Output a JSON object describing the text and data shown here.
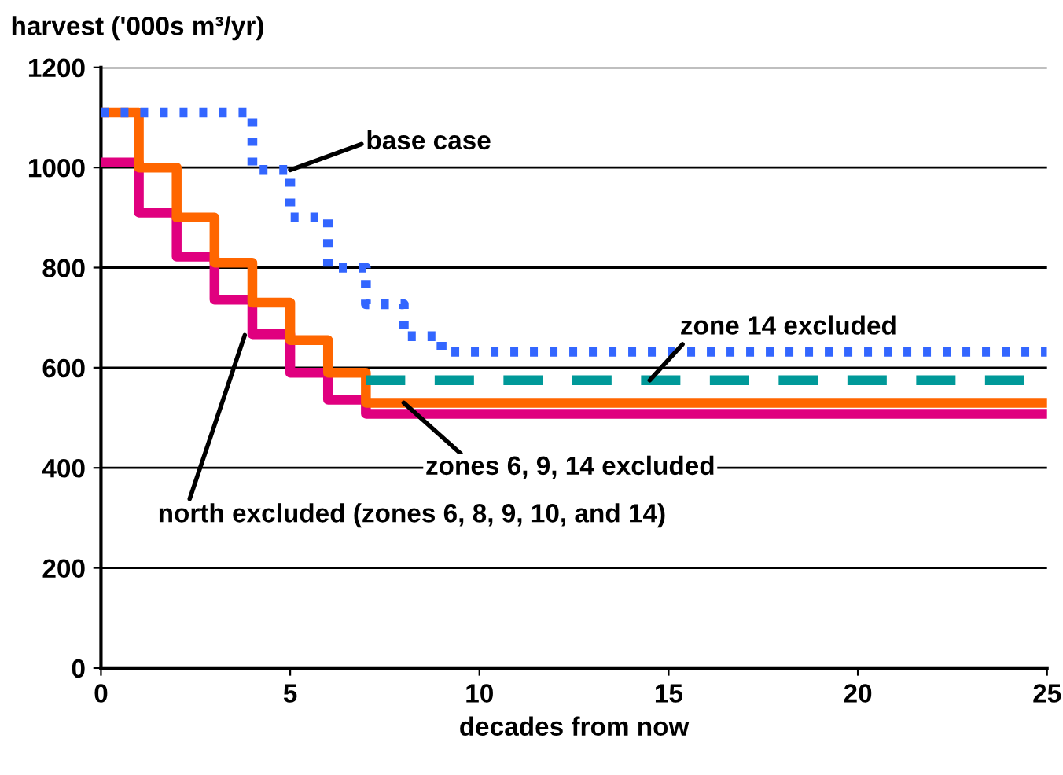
{
  "chart_data": {
    "type": "step",
    "ylabel": "harvest ('000s m³/yr)",
    "xlabel": "decades from now",
    "xlim": [
      0,
      25
    ],
    "ylim": [
      0,
      1200
    ],
    "xticks": [
      0,
      5,
      10,
      15,
      20,
      25
    ],
    "yticks": [
      0,
      200,
      400,
      600,
      800,
      1000,
      1200
    ],
    "grid": "y",
    "legend": false,
    "series": [
      {
        "color": "#e0007f",
        "line_style": "solid",
        "x": [
          0,
          1,
          2,
          3,
          4,
          5,
          6,
          7,
          25
        ],
        "values": [
          1010,
          910,
          822,
          736,
          667,
          590,
          536,
          508,
          508
        ]
      },
      {
        "color": "#ff6600",
        "line_style": "solid",
        "x": [
          0,
          1,
          2,
          3,
          4,
          5,
          6,
          7,
          25
        ],
        "values": [
          1110,
          1000,
          900,
          810,
          730,
          655,
          590,
          530,
          530
        ]
      },
      {
        "color": "#009999",
        "line_style": "dashed",
        "x": [
          7,
          25
        ],
        "values": [
          575,
          575
        ]
      },
      {
        "color": "#3366ff",
        "line_style": "dotted",
        "x": [
          0,
          4,
          5,
          6,
          7,
          8,
          9,
          25
        ],
        "values": [
          1110,
          995,
          900,
          800,
          727,
          663,
          632,
          632
        ]
      }
    ],
    "annotations": [
      {
        "text": "base case",
        "x": 5,
        "y": 995
      },
      {
        "text": "zone 14 excluded",
        "x": 14.5,
        "y": 575
      },
      {
        "text": "zones 6, 9, 14 excluded",
        "x": 8,
        "y": 530
      },
      {
        "text": "north excluded (zones 6, 8, 9, 10, and 14)",
        "x": 3.8,
        "y": 665
      }
    ]
  }
}
